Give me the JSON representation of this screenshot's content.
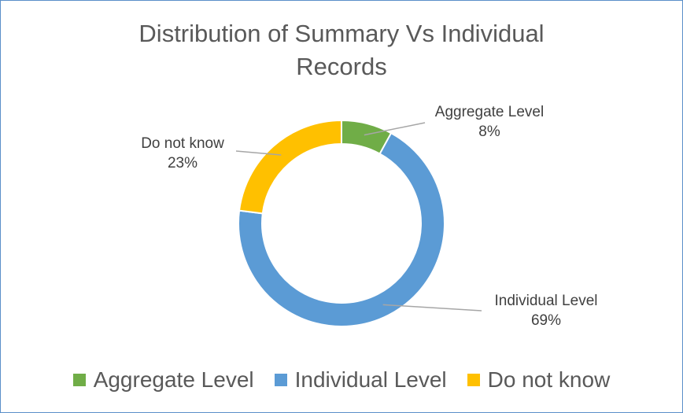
{
  "chart_data": {
    "type": "pie",
    "variant": "donut",
    "title_lines": [
      "Distribution of Summary Vs Individual",
      "Records"
    ],
    "categories": [
      "Aggregate Level",
      "Individual Level",
      "Do not know"
    ],
    "values": [
      8,
      69,
      23
    ],
    "labels": [
      "8%",
      "69%",
      "23%"
    ],
    "colors": [
      "#70ad47",
      "#5b9bd5",
      "#ffc000"
    ],
    "legend_position": "bottom"
  }
}
